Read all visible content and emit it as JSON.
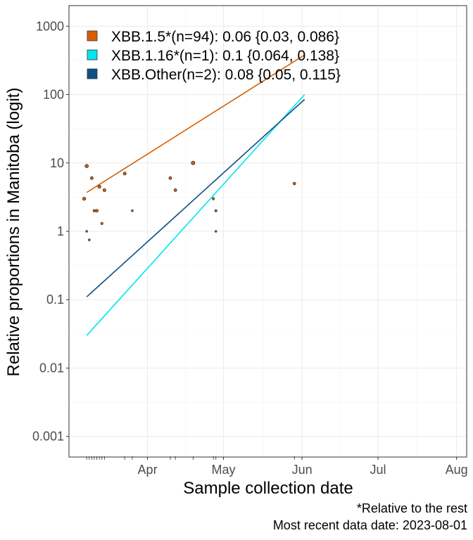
{
  "chart_data": {
    "type": "scatter",
    "xlabel": "Sample collection date",
    "ylabel": "Relative proportions in Manitoba (logit)",
    "y_scale": "log",
    "ylim": [
      0.0005,
      2000
    ],
    "xlim": [
      "2023-03-01",
      "2023-08-05"
    ],
    "grid": true,
    "y_ticks": [
      {
        "value": 0.001,
        "label": "0.001"
      },
      {
        "value": 0.01,
        "label": "0.01"
      },
      {
        "value": 0.1,
        "label": "0.1"
      },
      {
        "value": 1,
        "label": "1"
      },
      {
        "value": 10,
        "label": "10"
      },
      {
        "value": 100,
        "label": "100"
      },
      {
        "value": 1000,
        "label": "1000"
      }
    ],
    "x_ticks": [
      {
        "date": "2023-04-01",
        "label": "Apr"
      },
      {
        "date": "2023-05-01",
        "label": "May"
      },
      {
        "date": "2023-06-01",
        "label": "Jun"
      },
      {
        "date": "2023-07-01",
        "label": "Jul"
      },
      {
        "date": "2023-08-01",
        "label": "Aug"
      }
    ],
    "legend_position": "top-left",
    "series": [
      {
        "name": "XBB.1.5*(n=94): 0.06 {0.03, 0.086}",
        "color": "#d55e00",
        "fit": {
          "x": [
            "2023-03-08",
            "2023-06-02"
          ],
          "y": [
            3.7,
            380
          ]
        }
      },
      {
        "name": "XBB.1.16*(n=1): 0.1 {0.064, 0.138}",
        "color": "#00e5ee",
        "fit": {
          "x": [
            "2023-03-08",
            "2023-06-02"
          ],
          "y": [
            0.03,
            100
          ]
        }
      },
      {
        "name": "XBB.Other(n=2): 0.08 {0.05, 0.115}",
        "color": "#0b5283",
        "fit": {
          "x": [
            "2023-03-08",
            "2023-06-02"
          ],
          "y": [
            0.11,
            85
          ]
        }
      }
    ],
    "points": [
      {
        "x": "2023-03-07",
        "y": 3,
        "r": 2.2
      },
      {
        "x": "2023-03-08",
        "y": 9,
        "r": 2.4
      },
      {
        "x": "2023-03-08",
        "y": 1,
        "r": 1.3
      },
      {
        "x": "2023-03-09",
        "y": 0.75,
        "r": 1.4
      },
      {
        "x": "2023-03-10",
        "y": 6,
        "r": 2.0
      },
      {
        "x": "2023-03-11",
        "y": 2,
        "r": 1.8
      },
      {
        "x": "2023-03-12",
        "y": 2,
        "r": 2.0
      },
      {
        "x": "2023-03-13",
        "y": 4.5,
        "r": 2.2
      },
      {
        "x": "2023-03-14",
        "y": 1.3,
        "r": 1.6
      },
      {
        "x": "2023-03-15",
        "y": 4,
        "r": 2.1
      },
      {
        "x": "2023-03-23",
        "y": 7,
        "r": 2.1
      },
      {
        "x": "2023-03-26",
        "y": 2,
        "r": 1.4
      },
      {
        "x": "2023-04-10",
        "y": 6,
        "r": 2.0
      },
      {
        "x": "2023-04-12",
        "y": 4,
        "r": 2.0
      },
      {
        "x": "2023-04-19",
        "y": 10,
        "r": 2.6
      },
      {
        "x": "2023-04-27",
        "y": 3,
        "r": 1.7
      },
      {
        "x": "2023-04-28",
        "y": 2,
        "r": 1.6
      },
      {
        "x": "2023-04-28",
        "y": 1,
        "r": 1.4
      },
      {
        "x": "2023-05-29",
        "y": 5,
        "r": 1.9
      }
    ],
    "point_color": "#d55e00",
    "rug": [
      "2023-03-08",
      "2023-03-09",
      "2023-03-10",
      "2023-03-11",
      "2023-03-12",
      "2023-03-13",
      "2023-03-14",
      "2023-03-15",
      "2023-03-23",
      "2023-03-26",
      "2023-04-10",
      "2023-04-12",
      "2023-04-19",
      "2023-04-27",
      "2023-04-28",
      "2023-05-29"
    ]
  },
  "caption": {
    "line1": "*Relative to the rest",
    "line2": "Most recent data date: 2023-08-01"
  }
}
